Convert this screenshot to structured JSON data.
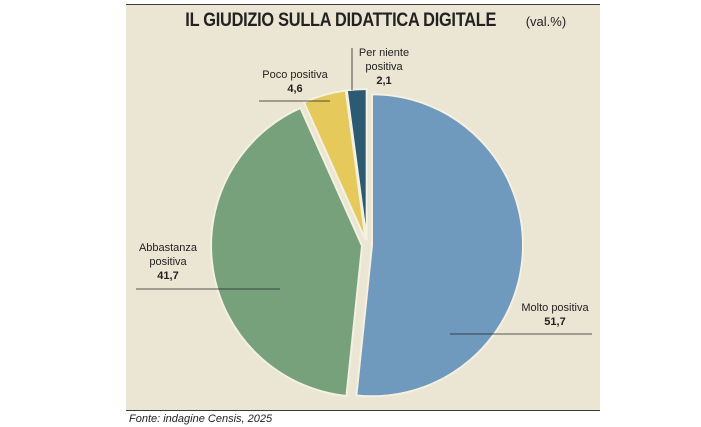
{
  "title": "IL GIUDIZIO SULLA DIDATTICA DIGITALE",
  "unit_label": "(val.%)",
  "source": "Fonte: indagine Censis, 2025",
  "chart_data": {
    "type": "pie",
    "title": "IL GIUDIZIO SULLA DIDATTICA DIGITALE",
    "unit": "(val.%)",
    "slices": [
      {
        "label": "Molto positiva",
        "value": 51.7,
        "value_text": "51,7",
        "color": "#7099be"
      },
      {
        "label": "Abbastanza positiva",
        "value": 41.7,
        "value_text": "41,7",
        "color": "#77a17b"
      },
      {
        "label": "Poco positiva",
        "value": 4.6,
        "value_text": "4,6",
        "color": "#e5ca5b"
      },
      {
        "label": "Per niente positiva",
        "value": 2.1,
        "value_text": "2,1",
        "color": "#2d5a73"
      }
    ]
  }
}
